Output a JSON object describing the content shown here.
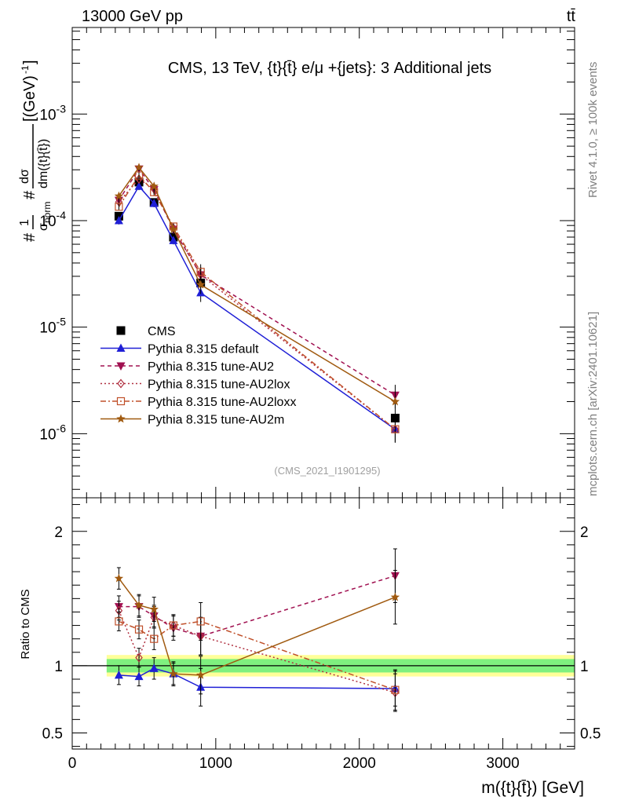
{
  "header": {
    "left_label": "13000 GeV pp",
    "right_label": "tt̄"
  },
  "side_labels": {
    "rivet": "Rivet 4.1.0, ≥ 100k events",
    "mcplots": "mcplots.cern.ch [arXiv:2401.10621]"
  },
  "colors": {
    "cms": "#000000",
    "default": "#1f1fd6",
    "au2": "#a01050",
    "au2lox": "#b03040",
    "au2loxx": "#c0502a",
    "au2m": "#a05a10",
    "band_inner": "#7ff07f",
    "band_outer": "#ffff99"
  },
  "chart_data": [
    {
      "id": "main",
      "type": "line",
      "title": "CMS, 13 TeV, {t}{t̄} e/μ +{jets}: 3 Additional jets",
      "ylabel": "#1/σnorm #dσ/dm({t}{t̄}) [(GeV)^-1]",
      "yscale": "log",
      "xlim": [
        0,
        3500
      ],
      "ylim": [
        2.5e-07,
        0.0065
      ],
      "y_tick_labels": [
        "10^-6",
        "10^-5",
        "10^-4",
        "10^-3"
      ],
      "analysis_id": "(CMS_2021_I1901295)",
      "x": [
        325,
        465,
        570,
        705,
        895,
        2250
      ],
      "series": [
        {
          "key": "cms",
          "name": "CMS",
          "values": [
            0.00011,
            0.00023,
            0.000148,
            7e-05,
            2.6e-05,
            1.4e-06
          ]
        },
        {
          "key": "default",
          "name": "Pythia 8.315 default",
          "values": [
            0.0001,
            0.00021,
            0.000145,
            6.5e-05,
            2.1e-05,
            1.1e-06
          ]
        },
        {
          "key": "au2",
          "name": "Pythia 8.315 tune-AU2",
          "values": [
            0.000155,
            0.000305,
            0.000195,
            8.3e-05,
            3.1e-05,
            2.3e-06
          ]
        },
        {
          "key": "au2lox",
          "name": "Pythia 8.315 tune-AU2lox",
          "values": [
            0.00015,
            0.000245,
            0.000198,
            8.5e-05,
            3.1e-05,
            1.1e-06
          ]
        },
        {
          "key": "au2loxx",
          "name": "Pythia 8.315 tune-AU2loxx",
          "values": [
            0.000135,
            0.000265,
            0.000185,
            8.8e-05,
            3.3e-05,
            1.1e-06
          ]
        },
        {
          "key": "au2m",
          "name": "Pythia 8.315 tune-AU2m",
          "values": [
            0.00017,
            0.000315,
            0.00021,
            8.3e-05,
            2.5e-05,
            2e-06
          ]
        }
      ]
    },
    {
      "id": "ratio",
      "type": "line",
      "ylabel": "Ratio to CMS",
      "xlabel": "m({t}{t̄}) [GeV]",
      "xlim": [
        0,
        3500
      ],
      "ylim": [
        0.38,
        2.25
      ],
      "y_tick_labels": [
        "0.5",
        "1",
        "2"
      ],
      "x_tick_labels": [
        "0",
        "1000",
        "2000",
        "3000"
      ],
      "band_x_range": [
        240,
        3500
      ],
      "band_inner": [
        0.95,
        1.05
      ],
      "band_outer": [
        0.92,
        1.08
      ],
      "x": [
        325,
        465,
        570,
        705,
        895,
        2250
      ],
      "series": [
        {
          "key": "default",
          "name": "Pythia 8.315 default",
          "values": [
            0.93,
            0.92,
            0.98,
            0.94,
            0.84,
            0.83
          ],
          "err": [
            0.07,
            0.07,
            0.08,
            0.08,
            0.14,
            0.13
          ]
        },
        {
          "key": "au2",
          "name": "Pythia 8.315 tune-AU2",
          "values": [
            1.44,
            1.44,
            1.37,
            1.28,
            1.22,
            1.67
          ],
          "err": [
            0.08,
            0.08,
            0.08,
            0.09,
            0.14,
            0.2
          ]
        },
        {
          "key": "au2lox",
          "name": "Pythia 8.315 tune-AU2lox",
          "values": [
            1.41,
            1.06,
            1.36,
            1.3,
            1.22,
            0.8
          ],
          "err": [
            0.07,
            0.07,
            0.08,
            0.08,
            0.14,
            0.14
          ]
        },
        {
          "key": "au2loxx",
          "name": "Pythia 8.315 tune-AU2loxx",
          "values": [
            1.33,
            1.27,
            1.2,
            1.3,
            1.33,
            0.82
          ],
          "err": [
            0.07,
            0.07,
            0.08,
            0.08,
            0.14,
            0.15
          ]
        },
        {
          "key": "au2m",
          "name": "Pythia 8.315 tune-AU2m",
          "values": [
            1.65,
            1.45,
            1.42,
            0.94,
            0.93,
            1.51
          ],
          "err": [
            0.08,
            0.08,
            0.09,
            0.09,
            0.14,
            0.2
          ]
        }
      ]
    }
  ]
}
